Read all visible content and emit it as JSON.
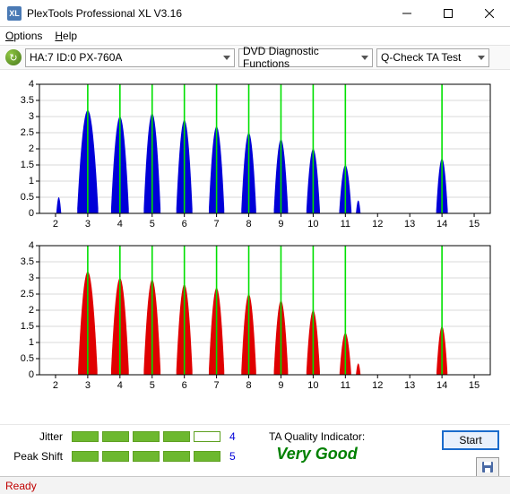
{
  "window": {
    "title": "PlexTools Professional XL V3.16",
    "icon_text": "XL"
  },
  "menu": {
    "options": "Options",
    "help": "Help"
  },
  "toolbar": {
    "drive": "HA:7 ID:0   PX-760A",
    "func": "DVD Diagnostic Functions",
    "test": "Q-Check TA Test"
  },
  "charts": {
    "top": {
      "color": "#0000d8",
      "ylim": [
        0,
        4
      ],
      "yticks": [
        0,
        0.5,
        1,
        1.5,
        2,
        2.5,
        3,
        3.5,
        4
      ],
      "xlim": [
        1.5,
        15.5
      ],
      "xticks": [
        2,
        3,
        4,
        5,
        6,
        7,
        8,
        9,
        10,
        11,
        12,
        13,
        14,
        15
      ],
      "vlines": [
        3,
        4,
        5,
        6,
        7,
        8,
        9,
        10,
        11,
        14
      ],
      "vline_color": "#00e000",
      "grid_color": "#cccccc",
      "axis_color": "#000000",
      "peaks": [
        {
          "c": 2.1,
          "h": 0.5,
          "w": 0.15
        },
        {
          "c": 3.0,
          "h": 3.2,
          "w": 0.65
        },
        {
          "c": 4.0,
          "h": 3.0,
          "w": 0.55
        },
        {
          "c": 5.0,
          "h": 3.1,
          "w": 0.52
        },
        {
          "c": 6.0,
          "h": 2.9,
          "w": 0.5
        },
        {
          "c": 7.0,
          "h": 2.7,
          "w": 0.48
        },
        {
          "c": 8.0,
          "h": 2.5,
          "w": 0.46
        },
        {
          "c": 9.0,
          "h": 2.3,
          "w": 0.44
        },
        {
          "c": 10.0,
          "h": 2.0,
          "w": 0.42
        },
        {
          "c": 11.0,
          "h": 1.5,
          "w": 0.38
        },
        {
          "c": 11.4,
          "h": 0.4,
          "w": 0.14
        },
        {
          "c": 14.0,
          "h": 1.7,
          "w": 0.36
        }
      ]
    },
    "bottom": {
      "color": "#e00000",
      "ylim": [
        0,
        4
      ],
      "yticks": [
        0,
        0.5,
        1,
        1.5,
        2,
        2.5,
        3,
        3.5,
        4
      ],
      "xlim": [
        1.5,
        15.5
      ],
      "xticks": [
        2,
        3,
        4,
        5,
        6,
        7,
        8,
        9,
        10,
        11,
        12,
        13,
        14,
        15
      ],
      "vlines": [
        3,
        4,
        5,
        6,
        7,
        8,
        9,
        10,
        11,
        14
      ],
      "vline_color": "#00e000",
      "grid_color": "#cccccc",
      "axis_color": "#000000",
      "peaks": [
        {
          "c": 3.0,
          "h": 3.2,
          "w": 0.6
        },
        {
          "c": 4.0,
          "h": 3.0,
          "w": 0.55
        },
        {
          "c": 5.0,
          "h": 2.95,
          "w": 0.52
        },
        {
          "c": 6.0,
          "h": 2.8,
          "w": 0.5
        },
        {
          "c": 7.0,
          "h": 2.7,
          "w": 0.48
        },
        {
          "c": 8.0,
          "h": 2.5,
          "w": 0.46
        },
        {
          "c": 9.0,
          "h": 2.3,
          "w": 0.44
        },
        {
          "c": 10.0,
          "h": 2.0,
          "w": 0.42
        },
        {
          "c": 11.0,
          "h": 1.3,
          "w": 0.36
        },
        {
          "c": 11.4,
          "h": 0.35,
          "w": 0.14
        },
        {
          "c": 14.0,
          "h": 1.5,
          "w": 0.34
        }
      ]
    }
  },
  "metrics": {
    "jitter": {
      "label": "Jitter",
      "value": 4,
      "max": 5
    },
    "peakshift": {
      "label": "Peak Shift",
      "value": 5,
      "max": 5
    }
  },
  "quality": {
    "label": "TA Quality Indicator:",
    "value": "Very Good",
    "color": "#008000"
  },
  "actions": {
    "start": "Start"
  },
  "status": "Ready"
}
